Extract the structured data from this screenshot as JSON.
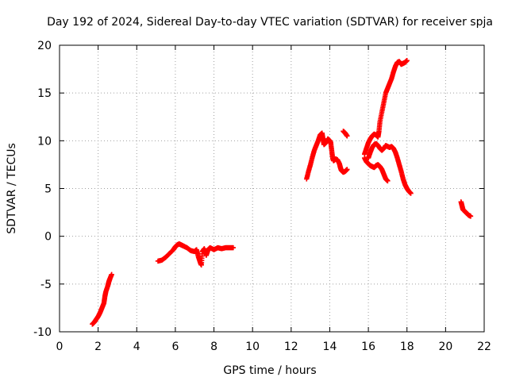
{
  "chart_data": {
    "type": "scatter",
    "title": "Day 192 of 2024, Sidereal Day-to-day VTEC variation (SDTVAR) for receiver spja",
    "xlabel": "GPS time / hours",
    "ylabel": "SDTVAR / TECUs",
    "xlim": [
      0,
      22
    ],
    "ylim": [
      -10,
      20
    ],
    "xticks": [
      "0",
      "2",
      "4",
      "6",
      "8",
      "10",
      "12",
      "14",
      "16",
      "18",
      "20",
      "22"
    ],
    "yticks": [
      "-10",
      "-5",
      "0",
      "5",
      "10",
      "15",
      "20"
    ],
    "grid": true,
    "marker": "+",
    "color": "#ff0000",
    "series": [
      {
        "segments": [
          [
            [
              1.7,
              -9.2
            ],
            [
              1.8,
              -9.0
            ],
            [
              1.9,
              -8.7
            ],
            [
              2.0,
              -8.4
            ],
            [
              2.1,
              -8.0
            ],
            [
              2.2,
              -7.5
            ],
            [
              2.3,
              -7.0
            ],
            [
              2.35,
              -6.3
            ],
            [
              2.4,
              -5.8
            ],
            [
              2.5,
              -5.2
            ],
            [
              2.55,
              -4.8
            ],
            [
              2.6,
              -4.5
            ],
            [
              2.7,
              -4.0
            ]
          ],
          [
            [
              5.1,
              -2.6
            ],
            [
              5.3,
              -2.5
            ],
            [
              5.5,
              -2.2
            ],
            [
              5.7,
              -1.8
            ],
            [
              5.9,
              -1.4
            ],
            [
              6.0,
              -1.1
            ],
            [
              6.1,
              -0.9
            ],
            [
              6.2,
              -0.8
            ],
            [
              6.3,
              -0.9
            ],
            [
              6.4,
              -1.0
            ],
            [
              6.6,
              -1.2
            ],
            [
              6.8,
              -1.5
            ],
            [
              7.0,
              -1.6
            ],
            [
              7.1,
              -1.4
            ],
            [
              7.2,
              -2.2
            ],
            [
              7.3,
              -2.8
            ],
            [
              7.35,
              -3.0
            ],
            [
              7.4,
              -1.6
            ],
            [
              7.5,
              -1.3
            ],
            [
              7.6,
              -2.0
            ],
            [
              7.7,
              -1.4
            ],
            [
              7.8,
              -1.2
            ],
            [
              8.0,
              -1.4
            ],
            [
              8.2,
              -1.2
            ],
            [
              8.4,
              -1.3
            ],
            [
              8.6,
              -1.2
            ],
            [
              8.8,
              -1.2
            ],
            [
              9.0,
              -1.2
            ]
          ],
          [
            [
              12.8,
              6.0
            ],
            [
              12.9,
              6.8
            ],
            [
              13.0,
              7.5
            ],
            [
              13.1,
              8.3
            ],
            [
              13.2,
              9.0
            ],
            [
              13.3,
              9.5
            ],
            [
              13.4,
              10.0
            ],
            [
              13.5,
              10.6
            ],
            [
              13.6,
              10.8
            ],
            [
              13.65,
              10.2
            ],
            [
              13.7,
              9.6
            ],
            [
              13.8,
              9.8
            ],
            [
              13.9,
              10.2
            ],
            [
              14.0,
              10.0
            ],
            [
              14.05,
              9.8
            ],
            [
              14.1,
              9.0
            ],
            [
              14.15,
              8.2
            ],
            [
              14.2,
              7.9
            ],
            [
              14.3,
              8.1
            ],
            [
              14.4,
              8.0
            ],
            [
              14.5,
              7.6
            ],
            [
              14.55,
              7.2
            ],
            [
              14.6,
              6.9
            ],
            [
              14.7,
              6.7
            ],
            [
              14.8,
              6.8
            ],
            [
              14.9,
              7.0
            ]
          ],
          [
            [
              14.7,
              11.0
            ],
            [
              14.8,
              10.8
            ],
            [
              14.9,
              10.5
            ]
          ],
          [
            [
              15.8,
              8.6
            ],
            [
              15.9,
              9.2
            ],
            [
              16.0,
              9.8
            ],
            [
              16.1,
              10.2
            ],
            [
              16.2,
              10.5
            ],
            [
              16.3,
              10.7
            ],
            [
              16.4,
              10.6
            ],
            [
              16.5,
              10.4
            ],
            [
              16.55,
              11.0
            ],
            [
              16.6,
              12.0
            ],
            [
              16.7,
              13.0
            ],
            [
              16.8,
              14.0
            ],
            [
              16.9,
              15.0
            ],
            [
              17.0,
              15.5
            ],
            [
              17.1,
              16.0
            ],
            [
              17.2,
              16.5
            ],
            [
              17.3,
              17.2
            ],
            [
              17.4,
              17.8
            ],
            [
              17.5,
              18.2
            ],
            [
              17.6,
              18.3
            ],
            [
              17.7,
              18.0
            ],
            [
              17.8,
              18.1
            ],
            [
              17.9,
              18.2
            ],
            [
              18.0,
              18.4
            ]
          ],
          [
            [
              15.8,
              8.2
            ],
            [
              15.9,
              7.8
            ],
            [
              16.0,
              7.6
            ],
            [
              16.1,
              7.4
            ],
            [
              16.2,
              7.3
            ],
            [
              16.3,
              7.2
            ],
            [
              16.4,
              7.4
            ],
            [
              16.5,
              7.5
            ],
            [
              16.6,
              7.3
            ],
            [
              16.7,
              7.0
            ],
            [
              16.8,
              6.5
            ],
            [
              16.9,
              6.0
            ],
            [
              17.0,
              5.8
            ]
          ],
          [
            [
              16.0,
              8.2
            ],
            [
              16.1,
              8.8
            ],
            [
              16.2,
              9.3
            ],
            [
              16.3,
              9.6
            ],
            [
              16.4,
              9.7
            ],
            [
              16.5,
              9.5
            ],
            [
              16.6,
              9.2
            ],
            [
              16.7,
              9.0
            ],
            [
              16.8,
              9.2
            ],
            [
              16.9,
              9.5
            ],
            [
              17.0,
              9.4
            ],
            [
              17.1,
              9.3
            ],
            [
              17.2,
              9.4
            ],
            [
              17.3,
              9.2
            ],
            [
              17.4,
              8.8
            ],
            [
              17.5,
              8.2
            ],
            [
              17.6,
              7.5
            ],
            [
              17.7,
              6.8
            ],
            [
              17.8,
              6.0
            ],
            [
              17.9,
              5.4
            ],
            [
              18.0,
              5.0
            ],
            [
              18.1,
              4.7
            ],
            [
              18.2,
              4.5
            ]
          ],
          [
            [
              20.8,
              3.6
            ],
            [
              20.85,
              3.2
            ],
            [
              20.9,
              2.8
            ],
            [
              21.0,
              2.6
            ],
            [
              21.1,
              2.4
            ],
            [
              21.2,
              2.2
            ],
            [
              21.3,
              2.1
            ]
          ]
        ]
      }
    ]
  }
}
